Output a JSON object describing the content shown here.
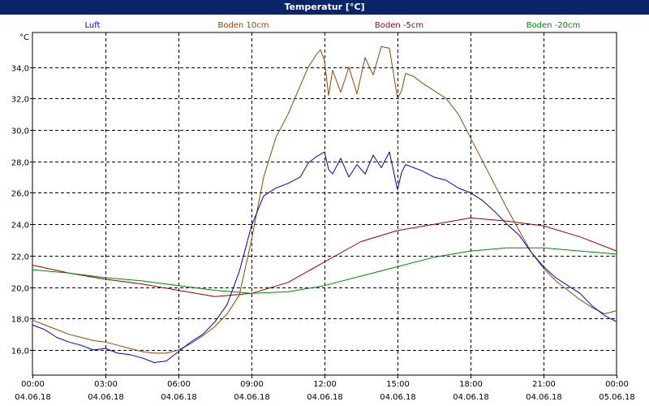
{
  "title": "Temperatur [°C]",
  "chart_data": {
    "type": "line",
    "title": "Temperatur [°C]",
    "ylabel": "°C",
    "y_unit": "°C",
    "ylim": [
      14.4,
      36.2
    ],
    "yticks": [
      "16,0",
      "18,0",
      "20,0",
      "22,0",
      "24,0",
      "26,0",
      "28,0",
      "30,0",
      "32,0",
      "34,0"
    ],
    "ytick_values": [
      16,
      18,
      20,
      22,
      24,
      26,
      28,
      30,
      32,
      34
    ],
    "xlim": [
      "2018-06-04 00:00",
      "2018-06-05 00:00"
    ],
    "xticks": [
      {
        "time": "00:00",
        "date": "04.06.18"
      },
      {
        "time": "03:00",
        "date": "04.06.18"
      },
      {
        "time": "06:00",
        "date": "04.06.18"
      },
      {
        "time": "09:00",
        "date": "04.06.18"
      },
      {
        "time": "12:00",
        "date": "04.06.18"
      },
      {
        "time": "15:00",
        "date": "04.06.18"
      },
      {
        "time": "18:00",
        "date": "04.06.18"
      },
      {
        "time": "21:00",
        "date": "04.06.18"
      },
      {
        "time": "00:00",
        "date": "05.06.18"
      }
    ],
    "grid": true,
    "legend_position": "top",
    "series": [
      {
        "name": "Luft",
        "color": "#0000cc",
        "x": [
          "2018-06-04 00:00",
          "2018-06-04 00:30",
          "2018-06-04 01:00",
          "2018-06-04 01:30",
          "2018-06-04 02:00",
          "2018-06-04 02:30",
          "2018-06-04 03:00",
          "2018-06-04 03:30",
          "2018-06-04 04:00",
          "2018-06-04 04:30",
          "2018-06-04 05:00",
          "2018-06-04 05:30",
          "2018-06-04 06:00",
          "2018-06-04 06:30",
          "2018-06-04 07:00",
          "2018-06-04 07:30",
          "2018-06-04 08:00",
          "2018-06-04 08:30",
          "2018-06-04 09:00",
          "2018-06-04 09:30",
          "2018-06-04 10:00",
          "2018-06-04 10:30",
          "2018-06-04 11:00",
          "2018-06-04 11:20",
          "2018-06-04 11:40",
          "2018-06-04 12:00",
          "2018-06-04 12:10",
          "2018-06-04 12:20",
          "2018-06-04 12:40",
          "2018-06-04 13:00",
          "2018-06-04 13:20",
          "2018-06-04 13:40",
          "2018-06-04 14:00",
          "2018-06-04 14:20",
          "2018-06-04 14:40",
          "2018-06-04 15:00",
          "2018-06-04 15:10",
          "2018-06-04 15:20",
          "2018-06-04 15:40",
          "2018-06-04 16:00",
          "2018-06-04 16:30",
          "2018-06-04 17:00",
          "2018-06-04 17:30",
          "2018-06-04 18:00",
          "2018-06-04 18:30",
          "2018-06-04 19:00",
          "2018-06-04 19:30",
          "2018-06-04 20:00",
          "2018-06-04 20:30",
          "2018-06-04 21:00",
          "2018-06-04 21:30",
          "2018-06-04 22:00",
          "2018-06-04 22:30",
          "2018-06-04 23:00",
          "2018-06-04 23:30",
          "2018-06-05 00:00"
        ],
        "values": [
          17.6,
          17.3,
          16.8,
          16.5,
          16.3,
          16.0,
          16.1,
          15.8,
          15.7,
          15.5,
          15.2,
          15.3,
          15.9,
          16.5,
          17.0,
          17.8,
          18.9,
          21.0,
          23.9,
          25.8,
          26.3,
          26.6,
          27.0,
          27.9,
          28.3,
          28.6,
          27.5,
          27.2,
          28.2,
          27.0,
          27.8,
          27.2,
          28.4,
          27.6,
          28.6,
          26.2,
          27.3,
          27.8,
          27.6,
          27.4,
          27.0,
          26.8,
          26.3,
          26.0,
          25.5,
          24.8,
          24.0,
          23.3,
          22.2,
          21.3,
          20.6,
          20.1,
          19.6,
          18.8,
          18.2,
          17.8
        ]
      },
      {
        "name": "Boden 10cm",
        "color": "#994400",
        "x": [
          "2018-06-04 00:00",
          "2018-06-04 00:30",
          "2018-06-04 01:00",
          "2018-06-04 01:30",
          "2018-06-04 02:00",
          "2018-06-04 02:30",
          "2018-06-04 03:00",
          "2018-06-04 03:30",
          "2018-06-04 04:00",
          "2018-06-04 04:30",
          "2018-06-04 05:00",
          "2018-06-04 05:30",
          "2018-06-04 06:00",
          "2018-06-04 06:30",
          "2018-06-04 07:00",
          "2018-06-04 07:30",
          "2018-06-04 08:00",
          "2018-06-04 08:30",
          "2018-06-04 09:00",
          "2018-06-04 09:30",
          "2018-06-04 10:00",
          "2018-06-04 10:30",
          "2018-06-04 11:00",
          "2018-06-04 11:20",
          "2018-06-04 11:40",
          "2018-06-04 11:50",
          "2018-06-04 12:00",
          "2018-06-04 12:10",
          "2018-06-04 12:20",
          "2018-06-04 12:40",
          "2018-06-04 13:00",
          "2018-06-04 13:20",
          "2018-06-04 13:40",
          "2018-06-04 14:00",
          "2018-06-04 14:20",
          "2018-06-04 14:40",
          "2018-06-04 15:00",
          "2018-06-04 15:10",
          "2018-06-04 15:20",
          "2018-06-04 15:40",
          "2018-06-04 16:00",
          "2018-06-04 16:30",
          "2018-06-04 17:00",
          "2018-06-04 17:30",
          "2018-06-04 18:00",
          "2018-06-04 18:30",
          "2018-06-04 19:00",
          "2018-06-04 19:30",
          "2018-06-04 20:00",
          "2018-06-04 20:30",
          "2018-06-04 21:00",
          "2018-06-04 21:30",
          "2018-06-04 22:00",
          "2018-06-04 22:30",
          "2018-06-04 23:00",
          "2018-06-04 23:30",
          "2018-06-05 00:00"
        ],
        "values": [
          17.9,
          17.6,
          17.3,
          17.0,
          16.8,
          16.6,
          16.5,
          16.3,
          16.1,
          15.9,
          15.8,
          15.8,
          16.0,
          16.4,
          16.9,
          17.5,
          18.3,
          19.5,
          23.0,
          27.0,
          29.5,
          31.0,
          32.8,
          34.0,
          34.8,
          35.1,
          34.4,
          32.2,
          33.8,
          32.4,
          34.0,
          32.3,
          34.6,
          33.5,
          35.3,
          35.2,
          32.0,
          32.5,
          33.6,
          33.4,
          33.0,
          32.5,
          32.0,
          31.0,
          29.5,
          28.0,
          26.5,
          25.0,
          23.6,
          22.2,
          21.2,
          20.4,
          19.8,
          19.2,
          18.7,
          18.3,
          18.5
        ]
      },
      {
        "name": "Boden -5cm",
        "color": "#990000",
        "x": [
          "2018-06-04 00:00",
          "2018-06-04 01:30",
          "2018-06-04 03:00",
          "2018-06-04 04:30",
          "2018-06-04 06:00",
          "2018-06-04 07:30",
          "2018-06-04 09:00",
          "2018-06-04 10:30",
          "2018-06-04 12:00",
          "2018-06-04 13:30",
          "2018-06-04 15:00",
          "2018-06-04 16:30",
          "2018-06-04 18:00",
          "2018-06-04 19:30",
          "2018-06-04 21:00",
          "2018-06-04 22:30",
          "2018-06-05 00:00"
        ],
        "values": [
          21.4,
          20.9,
          20.5,
          20.2,
          19.8,
          19.4,
          19.6,
          20.3,
          21.6,
          22.9,
          23.6,
          24.0,
          24.4,
          24.2,
          23.9,
          23.2,
          22.3
        ]
      },
      {
        "name": "Boden -20cm",
        "color": "#008800",
        "x": [
          "2018-06-04 00:00",
          "2018-06-04 01:30",
          "2018-06-04 03:00",
          "2018-06-04 04:30",
          "2018-06-04 06:00",
          "2018-06-04 07:30",
          "2018-06-04 09:00",
          "2018-06-04 10:30",
          "2018-06-04 12:00",
          "2018-06-04 13:30",
          "2018-06-04 15:00",
          "2018-06-04 16:30",
          "2018-06-04 18:00",
          "2018-06-04 19:30",
          "2018-06-04 21:00",
          "2018-06-04 22:30",
          "2018-06-05 00:00"
        ],
        "values": [
          21.1,
          20.9,
          20.6,
          20.4,
          20.1,
          19.8,
          19.6,
          19.7,
          20.1,
          20.7,
          21.3,
          21.9,
          22.3,
          22.5,
          22.5,
          22.3,
          22.1
        ]
      }
    ]
  }
}
